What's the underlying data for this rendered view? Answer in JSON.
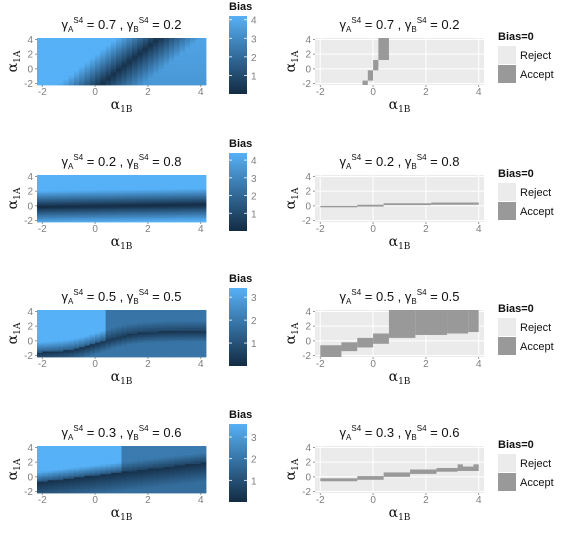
{
  "figure": {
    "left_legend_title": "Bias",
    "right_legend_title": "Bias=0",
    "accept_label": "Accept",
    "reject_label": "Reject",
    "x_axis_label": "α",
    "x_axis_sub": "1B",
    "y_axis_label": "α",
    "y_axis_sub": "1A"
  },
  "colors": {
    "panel_bg": "#ebebeb",
    "grid": "#ffffff",
    "accept": "#999999",
    "reject": "#ebebeb",
    "gradient_low": "#132b43",
    "gradient_high": "#56b1f7"
  },
  "chart_data": [
    {
      "type": "heatmap",
      "title": "γA S4 = 0.7 , γB S4 = 0.2",
      "gamma_A": "0.7",
      "gamma_B": "0.2",
      "xlabel": "α1B",
      "ylabel": "α1A",
      "xlim": [
        -2.2,
        4.2
      ],
      "ylim": [
        -2.2,
        4.2
      ],
      "xticks": [
        -2,
        0,
        2,
        4
      ],
      "yticks": [
        -2,
        0,
        2,
        4
      ],
      "fill": "Bias",
      "legend_ticks": [
        1,
        2,
        3,
        4
      ],
      "legend_range": [
        0,
        4.2
      ],
      "pattern": "fan"
    },
    {
      "type": "heatmap",
      "title": "γA S4 = 0.7 , γB S4 = 0.2",
      "gamma_A": "0.7",
      "gamma_B": "0.2",
      "xlabel": "α1B",
      "ylabel": "α1A",
      "xlim": [
        -2.2,
        4.2
      ],
      "ylim": [
        -2.2,
        4.2
      ],
      "xticks": [
        -2,
        0,
        2,
        4
      ],
      "yticks": [
        -2,
        0,
        2,
        4
      ],
      "fill": "Bias=0",
      "categories": [
        "Reject",
        "Accept"
      ],
      "accept_region": [
        {
          "x": [
            -0.4,
            -0.2
          ],
          "y": [
            -2.2,
            -1.6
          ]
        },
        {
          "x": [
            -0.2,
            0.0
          ],
          "y": [
            -1.6,
            -0.2
          ]
        },
        {
          "x": [
            0.0,
            0.2
          ],
          "y": [
            -0.2,
            1.2
          ]
        },
        {
          "x": [
            0.2,
            0.6
          ],
          "y": [
            1.2,
            4.2
          ]
        }
      ]
    },
    {
      "type": "heatmap",
      "title": "γA S4 = 0.2 , γB S4 = 0.8",
      "gamma_A": "0.2",
      "gamma_B": "0.8",
      "xlabel": "α1B",
      "ylabel": "α1A",
      "xlim": [
        -2.2,
        4.2
      ],
      "ylim": [
        -2.2,
        4.2
      ],
      "xticks": [
        -2,
        0,
        2,
        4
      ],
      "yticks": [
        -2,
        0,
        2,
        4
      ],
      "fill": "Bias",
      "legend_ticks": [
        1,
        2,
        3,
        4
      ],
      "legend_range": [
        0,
        4.4
      ],
      "pattern": "band"
    },
    {
      "type": "heatmap",
      "title": "γA S4 = 0.2 , γB S4 = 0.8",
      "gamma_A": "0.2",
      "gamma_B": "0.8",
      "xlabel": "α1B",
      "ylabel": "α1A",
      "xlim": [
        -2.2,
        4.2
      ],
      "ylim": [
        -2.2,
        4.2
      ],
      "xticks": [
        -2,
        0,
        2,
        4
      ],
      "yticks": [
        -2,
        0,
        2,
        4
      ],
      "fill": "Bias=0",
      "categories": [
        "Reject",
        "Accept"
      ],
      "accept_region": [
        {
          "x": [
            -2.0,
            -0.6
          ],
          "y": [
            -0.2,
            0.0
          ]
        },
        {
          "x": [
            -0.6,
            0.4
          ],
          "y": [
            -0.1,
            0.15
          ]
        },
        {
          "x": [
            0.4,
            2.2
          ],
          "y": [
            0.1,
            0.35
          ]
        },
        {
          "x": [
            2.2,
            4.0
          ],
          "y": [
            0.15,
            0.45
          ]
        }
      ]
    },
    {
      "type": "heatmap",
      "title": "γA S4 = 0.5 , γB S4 = 0.5",
      "gamma_A": "0.5",
      "gamma_B": "0.5",
      "xlabel": "α1B",
      "ylabel": "α1A",
      "xlim": [
        -2.2,
        4.2
      ],
      "ylim": [
        -2.2,
        4.2
      ],
      "xticks": [
        -2,
        0,
        2,
        4
      ],
      "yticks": [
        -2,
        0,
        2,
        4
      ],
      "fill": "Bias",
      "legend_ticks": [
        1,
        2,
        3
      ],
      "legend_range": [
        0,
        3.4
      ],
      "pattern": "curve"
    },
    {
      "type": "heatmap",
      "title": "γA S4 = 0.5 , γB S4 = 0.5",
      "gamma_A": "0.5",
      "gamma_B": "0.5",
      "xlabel": "α1B",
      "ylabel": "α1A",
      "xlim": [
        -2.2,
        4.2
      ],
      "ylim": [
        -2.2,
        4.2
      ],
      "xticks": [
        -2,
        0,
        2,
        4
      ],
      "yticks": [
        -2,
        0,
        2,
        4
      ],
      "fill": "Bias=0",
      "categories": [
        "Reject",
        "Accept"
      ],
      "accept_region": [
        {
          "x": [
            -2.0,
            -1.2
          ],
          "y": [
            -2.2,
            -0.6
          ]
        },
        {
          "x": [
            -1.2,
            -0.6
          ],
          "y": [
            -1.4,
            -0.2
          ]
        },
        {
          "x": [
            -0.6,
            0.0
          ],
          "y": [
            -0.9,
            0.4
          ]
        },
        {
          "x": [
            0.0,
            0.6
          ],
          "y": [
            -0.4,
            1.0
          ]
        },
        {
          "x": [
            0.6,
            1.6
          ],
          "y": [
            0.4,
            4.2
          ]
        },
        {
          "x": [
            1.6,
            2.8
          ],
          "y": [
            0.8,
            4.2
          ]
        },
        {
          "x": [
            2.8,
            3.6
          ],
          "y": [
            1.0,
            4.2
          ]
        },
        {
          "x": [
            3.6,
            4.0
          ],
          "y": [
            1.2,
            4.2
          ]
        }
      ]
    },
    {
      "type": "heatmap",
      "title": "γA S4 = 0.3 , γB S4 = 0.6",
      "gamma_A": "0.3",
      "gamma_B": "0.6",
      "xlabel": "α1B",
      "ylabel": "α1A",
      "xlim": [
        -2.2,
        4.2
      ],
      "ylim": [
        -2.2,
        4.2
      ],
      "xticks": [
        -2,
        0,
        2,
        4
      ],
      "yticks": [
        -2,
        0,
        2,
        4
      ],
      "fill": "Bias",
      "legend_ticks": [
        1,
        2,
        3
      ],
      "legend_range": [
        0,
        3.6
      ],
      "pattern": "soft"
    },
    {
      "type": "heatmap",
      "title": "γA S4 = 0.3 , γB S4 = 0.6",
      "gamma_A": "0.3",
      "gamma_B": "0.6",
      "xlabel": "α1B",
      "ylabel": "α1A",
      "xlim": [
        -2.2,
        4.2
      ],
      "ylim": [
        -2.2,
        4.2
      ],
      "xticks": [
        -2,
        0,
        2,
        4
      ],
      "yticks": [
        -2,
        0,
        2,
        4
      ],
      "fill": "Bias=0",
      "categories": [
        "Reject",
        "Accept"
      ],
      "accept_region": [
        {
          "x": [
            -2.0,
            -0.6
          ],
          "y": [
            -0.6,
            -0.2
          ]
        },
        {
          "x": [
            -0.6,
            0.4
          ],
          "y": [
            -0.4,
            0.1
          ]
        },
        {
          "x": [
            0.4,
            1.4
          ],
          "y": [
            0.0,
            0.6
          ]
        },
        {
          "x": [
            1.4,
            2.4
          ],
          "y": [
            0.4,
            1.0
          ]
        },
        {
          "x": [
            2.4,
            3.2
          ],
          "y": [
            0.7,
            1.2
          ]
        },
        {
          "x": [
            3.2,
            4.0
          ],
          "y": [
            0.8,
            1.4
          ]
        },
        {
          "x": [
            3.2,
            3.4
          ],
          "y": [
            1.4,
            1.7
          ]
        },
        {
          "x": [
            3.8,
            4.0
          ],
          "y": [
            1.4,
            1.7
          ]
        }
      ]
    }
  ]
}
